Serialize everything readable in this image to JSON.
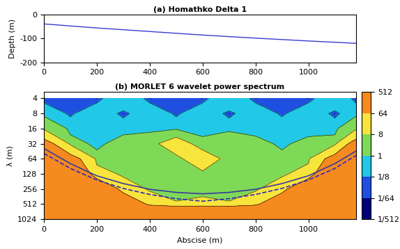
{
  "chart_data": [
    {
      "type": "line",
      "title": "(a) Homathko Delta 1",
      "y_label": "Depth (m)",
      "x": [
        0,
        200,
        400,
        600,
        800,
        1000,
        1180
      ],
      "values": [
        -38,
        -55,
        -70,
        -85,
        -98,
        -110,
        -120
      ],
      "color": "#3b3bd1",
      "xlim": [
        0,
        1180
      ],
      "xticks": [
        0,
        200,
        400,
        600,
        800,
        1000
      ],
      "ylim": [
        -200,
        0
      ],
      "yticks": [
        -200,
        -100,
        0
      ]
    },
    {
      "type": "heatmap",
      "title": "(b) MORLET 6 wavelet power spectrum",
      "x_label": "Abscise (m)",
      "y_label": "λ (m)",
      "log": "y",
      "x": [
        0,
        100,
        200,
        300,
        400,
        500,
        600,
        700,
        800,
        900,
        1000,
        1100,
        1180
      ],
      "y": [
        4,
        8,
        16,
        32,
        64,
        128,
        256,
        512,
        1024
      ],
      "cells": [
        [
          0.01,
          0.1,
          0.01,
          0.5,
          0.01,
          0.1,
          0.01,
          0.5,
          0.01,
          0.1,
          0.01,
          0.5,
          0.01
        ],
        [
          0.5,
          0.05,
          0.5,
          0.01,
          0.5,
          0.05,
          0.5,
          0.01,
          0.5,
          0.05,
          0.5,
          0.01,
          0.5
        ],
        [
          4,
          0.5,
          0.2,
          0.5,
          0.3,
          0.5,
          0.2,
          0.5,
          0.3,
          0.5,
          0.2,
          0.5,
          4
        ],
        [
          100,
          2,
          0.5,
          2,
          4,
          16,
          2,
          4,
          2,
          0.5,
          2,
          2,
          100
        ],
        [
          200,
          100,
          2,
          4,
          2,
          4,
          20,
          2,
          4,
          2,
          4,
          100,
          200
        ],
        [
          512,
          200,
          20,
          4,
          2,
          2,
          4,
          2,
          2,
          4,
          20,
          200,
          512
        ],
        [
          512,
          512,
          200,
          30,
          4,
          2,
          2,
          2,
          4,
          30,
          200,
          512,
          512
        ],
        [
          512,
          512,
          512,
          200,
          40,
          10,
          16,
          10,
          40,
          200,
          512,
          512,
          512
        ],
        [
          512,
          512,
          512,
          512,
          512,
          512,
          512,
          512,
          512,
          512,
          512,
          512,
          512
        ]
      ],
      "colors": [
        "#00007a",
        "#1f4fe0",
        "#22c8e8",
        "#7ed957",
        "#f7e43c",
        "#f58a1f"
      ],
      "colorbar_ticks": [
        {
          "value": 0.001953125,
          "label": "1/512"
        },
        {
          "value": 0.015625,
          "label": "1/64"
        },
        {
          "value": 0.125,
          "label": "1/8"
        },
        1,
        8,
        64,
        512
      ],
      "contours": [
        {
          "line_style": "solid",
          "color": "#3a3a9a",
          "x": [
            0,
            100,
            200,
            300,
            400,
            500,
            600,
            700,
            800,
            900,
            1000,
            1100,
            1180
          ],
          "values": [
            40,
            80,
            140,
            200,
            260,
            300,
            320,
            300,
            260,
            200,
            140,
            80,
            45
          ]
        },
        {
          "line_style": "dashed",
          "color": "#2a2ac0",
          "x": [
            0,
            100,
            200,
            300,
            400,
            500,
            600,
            700,
            800,
            900,
            1000,
            1100,
            1180
          ],
          "values": [
            50,
            100,
            170,
            250,
            330,
            400,
            450,
            400,
            330,
            250,
            170,
            100,
            55
          ]
        }
      ],
      "xlim": [
        0,
        1180
      ],
      "xticks": [
        0,
        200,
        400,
        600,
        800,
        1000
      ],
      "ylim": [
        1024,
        3
      ],
      "yticks": [
        4,
        8,
        16,
        32,
        64,
        128,
        256,
        512,
        1024
      ]
    }
  ]
}
